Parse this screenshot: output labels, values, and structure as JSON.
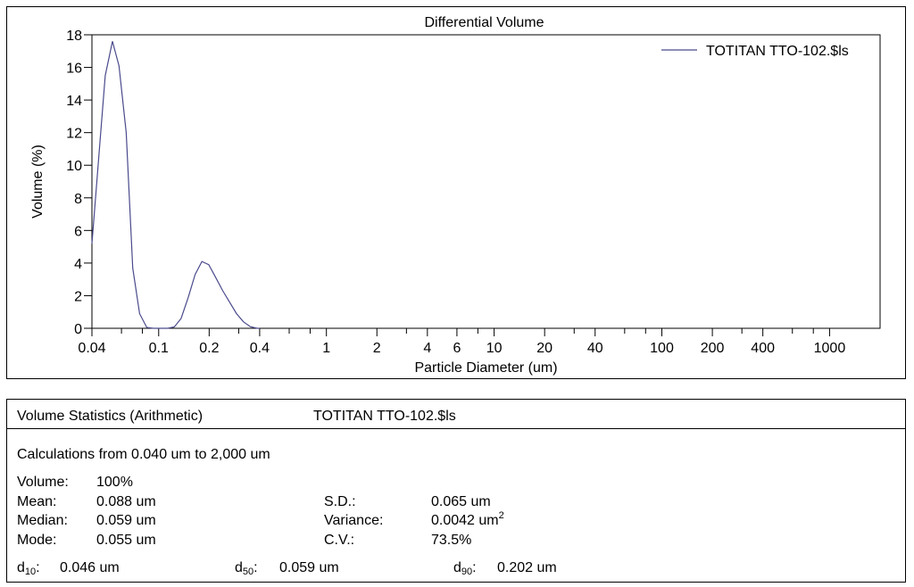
{
  "chart_data": {
    "type": "line",
    "title": "Differential Volume",
    "xlabel": "Particle Diameter (um)",
    "ylabel": "Volume (%)",
    "x_scale": "log",
    "xlim": [
      0.04,
      2000
    ],
    "ylim": [
      0,
      18
    ],
    "yticks": [
      0,
      2,
      4,
      6,
      8,
      10,
      12,
      14,
      16,
      18
    ],
    "xtick_labels": [
      {
        "v": 0.04,
        "t": "0.04"
      },
      {
        "v": 0.1,
        "t": "0.1"
      },
      {
        "v": 0.2,
        "t": "0.2"
      },
      {
        "v": 0.4,
        "t": "0.4"
      },
      {
        "v": 1,
        "t": "1"
      },
      {
        "v": 2,
        "t": "2"
      },
      {
        "v": 4,
        "t": "4"
      },
      {
        "v": 6,
        "t": "6"
      },
      {
        "v": 10,
        "t": "10"
      },
      {
        "v": 20,
        "t": "20"
      },
      {
        "v": 40,
        "t": "40"
      },
      {
        "v": 100,
        "t": "100"
      },
      {
        "v": 200,
        "t": "200"
      },
      {
        "v": 400,
        "t": "400"
      },
      {
        "v": 1000,
        "t": "1000"
      }
    ],
    "xminor_ticks": [
      0.06,
      0.08,
      0.3,
      0.6,
      0.8,
      3,
      8,
      30,
      60,
      80,
      300,
      600,
      800
    ],
    "legend": "top-right",
    "grid": false,
    "series": [
      {
        "name": "TOTITAN TTO-102.$ls",
        "color": "#4a4a8c",
        "x": [
          0.04,
          0.044,
          0.048,
          0.053,
          0.058,
          0.064,
          0.07,
          0.077,
          0.085,
          0.093,
          0.103,
          0.113,
          0.124,
          0.136,
          0.15,
          0.165,
          0.181,
          0.199,
          0.219,
          0.241,
          0.265,
          0.291,
          0.32,
          0.352,
          0.387,
          0.4
        ],
        "y": [
          5.2,
          10.6,
          15.5,
          17.6,
          16.1,
          12.0,
          3.7,
          0.9,
          0.05,
          0.0,
          0.0,
          0.0,
          0.08,
          0.6,
          1.9,
          3.3,
          4.1,
          3.9,
          3.1,
          2.3,
          1.6,
          0.9,
          0.4,
          0.1,
          0.0,
          0.0
        ]
      }
    ]
  },
  "stats": {
    "heading": "Volume Statistics (Arithmetic)",
    "file": "TOTITAN TTO-102.$ls",
    "calc_range": "Calculations from 0.040 um to 2,000 um",
    "volume_label": "Volume:",
    "volume_value": "100%",
    "mean_label": "Mean:",
    "mean_value": "0.088 um",
    "median_label": "Median:",
    "median_value": "0.059 um",
    "mode_label": "Mode:",
    "mode_value": "0.055 um",
    "sd_label": "S.D.:",
    "sd_value": "0.065 um",
    "variance_label": "Variance:",
    "variance_value": "0.0042 um",
    "variance_exp": "2",
    "cv_label": "C.V.:",
    "cv_value": "73.5%",
    "d10_label": "d",
    "d10_sub": "10",
    "d10_colon": ":",
    "d10_value": "0.046 um",
    "d50_label": "d",
    "d50_sub": "50",
    "d50_colon": ":",
    "d50_value": "0.059 um",
    "d90_label": "d",
    "d90_sub": "90",
    "d90_colon": ":",
    "d90_value": "0.202 um"
  }
}
